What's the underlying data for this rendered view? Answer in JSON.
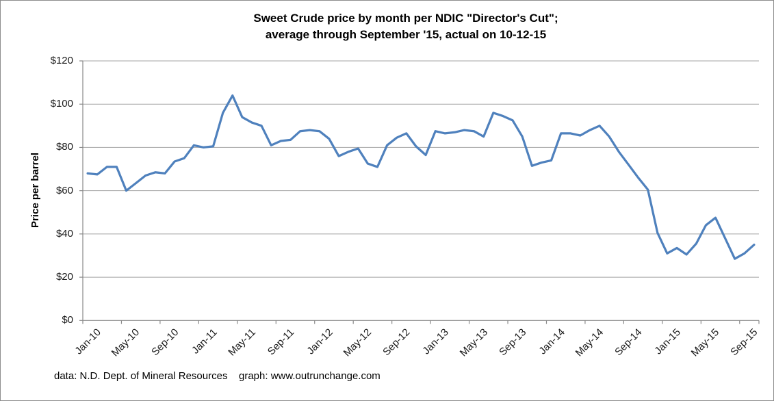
{
  "title": {
    "line1": "Sweet Crude price by month per NDIC \"Director's Cut\";",
    "line2": "average through September '15, actual on 10-12-15"
  },
  "footer": {
    "data_source": "data: N.D. Dept. of Mineral Resources",
    "graph_credit": "graph:  www.outrunchange.com"
  },
  "chart_data": {
    "type": "line",
    "title": "Sweet Crude price by month per NDIC \"Director's Cut\"; average through September '15, actual on 10-12-15",
    "xlabel": "",
    "ylabel": "Price per barrel",
    "ylim": [
      0,
      120
    ],
    "y_tick_interval": 20,
    "y_tick_labels": [
      "$0",
      "$20",
      "$40",
      "$60",
      "$80",
      "$100",
      "$120"
    ],
    "x_tick_labels": [
      "Jan-10",
      "May-10",
      "Sep-10",
      "Jan-11",
      "May-11",
      "Sep-11",
      "Jan-12",
      "May-12",
      "Sep-12",
      "Jan-13",
      "May-13",
      "Sep-13",
      "Jan-14",
      "May-14",
      "Sep-14",
      "Jan-15",
      "May-15",
      "Sep-15"
    ],
    "x_label_every": 4,
    "grid": true,
    "legend": false,
    "line_color": "#4F81BD",
    "grid_color": "#a3a3a3",
    "axis_color": "#898989",
    "last_point_note": "final point is actual price on 10-12-15",
    "categories": [
      "Jan-10",
      "Feb-10",
      "Mar-10",
      "Apr-10",
      "May-10",
      "Jun-10",
      "Jul-10",
      "Aug-10",
      "Sep-10",
      "Oct-10",
      "Nov-10",
      "Dec-10",
      "Jan-11",
      "Feb-11",
      "Mar-11",
      "Apr-11",
      "May-11",
      "Jun-11",
      "Jul-11",
      "Aug-11",
      "Sep-11",
      "Oct-11",
      "Nov-11",
      "Dec-11",
      "Jan-12",
      "Feb-12",
      "Mar-12",
      "Apr-12",
      "May-12",
      "Jun-12",
      "Jul-12",
      "Aug-12",
      "Sep-12",
      "Oct-12",
      "Nov-12",
      "Dec-12",
      "Jan-13",
      "Feb-13",
      "Mar-13",
      "Apr-13",
      "May-13",
      "Jun-13",
      "Jul-13",
      "Aug-13",
      "Sep-13",
      "Oct-13",
      "Nov-13",
      "Dec-13",
      "Jan-14",
      "Feb-14",
      "Mar-14",
      "Apr-14",
      "May-14",
      "Jun-14",
      "Jul-14",
      "Aug-14",
      "Sep-14",
      "Oct-14",
      "Nov-14",
      "Dec-14",
      "Jan-15",
      "Feb-15",
      "Mar-15",
      "Apr-15",
      "May-15",
      "Jun-15",
      "Jul-15",
      "Aug-15",
      "Sep-15",
      "Oct-15"
    ],
    "values": [
      68,
      67.5,
      71,
      71,
      60,
      63.5,
      67,
      68.5,
      68,
      73.5,
      75,
      81,
      80,
      80.5,
      96,
      104,
      94,
      91.5,
      90,
      81,
      83,
      83.5,
      87.5,
      88,
      87.5,
      84,
      76,
      78,
      79.5,
      72.5,
      71,
      81,
      84.5,
      86.5,
      80.5,
      76.5,
      87.5,
      86.5,
      87,
      88,
      87.5,
      85,
      96,
      94.5,
      92.5,
      85,
      71.5,
      73,
      74,
      86.5,
      86.5,
      85.5,
      88,
      90,
      85,
      78,
      72,
      66,
      60.5,
      40.5,
      31,
      33.5,
      30.5,
      35.5,
      44,
      47.5,
      38,
      28.5,
      31,
      35
    ]
  }
}
